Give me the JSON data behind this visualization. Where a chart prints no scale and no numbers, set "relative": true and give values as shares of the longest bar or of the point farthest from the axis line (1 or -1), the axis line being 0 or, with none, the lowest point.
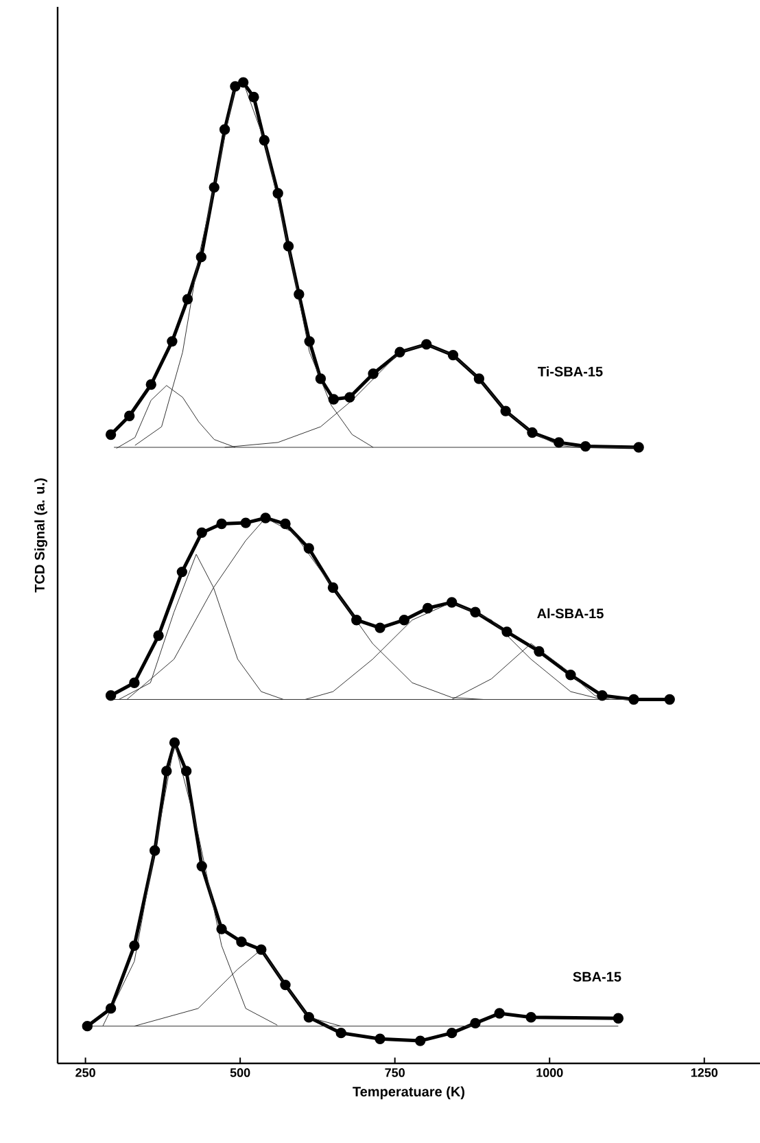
{
  "chart_data": {
    "type": "line",
    "relative": true,
    "xlabel": "Temperatuare (K)",
    "ylabel": "TCD Signal (a. u.)",
    "xlim": [
      205,
      1340
    ],
    "xticks": [
      250,
      500,
      750,
      1000,
      1250
    ],
    "line_style": "solid",
    "annotations": [
      "Ti-SBA-15",
      "Al-SBA-15",
      "SBA-15"
    ],
    "series": [
      {
        "color": "#000000",
        "marker": "circle",
        "x": [
          253,
          291,
          329,
          362,
          381,
          394,
          413,
          438,
          470,
          502,
          534,
          573,
          611,
          663,
          726,
          791,
          842,
          880,
          919,
          970,
          1111
        ],
        "values": [
          0.038,
          0.056,
          0.12,
          0.217,
          0.298,
          0.327,
          0.298,
          0.201,
          0.137,
          0.124,
          0.116,
          0.08,
          0.047,
          0.031,
          0.025,
          0.023,
          0.031,
          0.041,
          0.051,
          0.047,
          0.046
        ]
      },
      {
        "color": "#333333",
        "marker": "none",
        "x": [
          278,
          329,
          362,
          394,
          432,
          470,
          509,
          560
        ],
        "values": [
          0.038,
          0.104,
          0.217,
          0.327,
          0.234,
          0.12,
          0.056,
          0.039
        ]
      },
      {
        "color": "#333333",
        "marker": "none",
        "x": [
          329,
          432,
          496,
          534,
          573,
          611,
          663
        ],
        "values": [
          0.038,
          0.056,
          0.096,
          0.116,
          0.08,
          0.047,
          0.038
        ]
      },
      {
        "color": "#333333",
        "marker": "none",
        "x": [
          253,
          1111
        ],
        "values": [
          0.038,
          0.038
        ]
      },
      {
        "color": "#000000",
        "marker": "circle",
        "x": [
          291,
          329,
          368,
          406,
          438,
          470,
          509,
          541,
          573,
          611,
          650,
          688,
          726,
          765,
          803,
          842,
          880,
          931,
          983,
          1034,
          1085,
          1136,
          1194
        ],
        "values": [
          0.375,
          0.388,
          0.436,
          0.501,
          0.541,
          0.55,
          0.551,
          0.556,
          0.55,
          0.525,
          0.485,
          0.452,
          0.444,
          0.452,
          0.464,
          0.47,
          0.46,
          0.44,
          0.42,
          0.396,
          0.375,
          0.371,
          0.371
        ]
      },
      {
        "color": "#333333",
        "marker": "none",
        "x": [
          304,
          355,
          393,
          429,
          457,
          496,
          534,
          570
        ],
        "values": [
          0.371,
          0.388,
          0.46,
          0.519,
          0.485,
          0.412,
          0.379,
          0.371
        ]
      },
      {
        "color": "#333333",
        "marker": "none",
        "x": [
          317,
          393,
          457,
          509,
          541,
          586,
          650,
          714,
          778,
          842,
          893
        ],
        "values": [
          0.371,
          0.412,
          0.485,
          0.533,
          0.556,
          0.541,
          0.485,
          0.428,
          0.388,
          0.373,
          0.371
        ]
      },
      {
        "color": "#333333",
        "marker": "none",
        "x": [
          605,
          650,
          714,
          778,
          842,
          906,
          970,
          1034,
          1085
        ],
        "values": [
          0.371,
          0.379,
          0.412,
          0.452,
          0.47,
          0.452,
          0.412,
          0.379,
          0.371
        ]
      },
      {
        "color": "#333333",
        "marker": "none",
        "x": [
          842,
          906,
          970,
          1021,
          1073,
          1098
        ],
        "values": [
          0.371,
          0.392,
          0.428,
          0.404,
          0.375,
          0.371
        ]
      },
      {
        "color": "#333333",
        "marker": "none",
        "x": [
          291,
          1136
        ],
        "values": [
          0.371,
          0.371
        ]
      },
      {
        "color": "#000000",
        "marker": "circle",
        "x": [
          291,
          321,
          356,
          390,
          415,
          437,
          458,
          475,
          492,
          505,
          522,
          539,
          561,
          578,
          595,
          612,
          630,
          651,
          677,
          715,
          758,
          801,
          844,
          886,
          929,
          972,
          1015,
          1058,
          1144
        ],
        "values": [
          0.641,
          0.66,
          0.692,
          0.736,
          0.779,
          0.822,
          0.893,
          0.952,
          0.996,
          1.0,
          0.985,
          0.941,
          0.887,
          0.833,
          0.784,
          0.736,
          0.698,
          0.677,
          0.679,
          0.703,
          0.725,
          0.733,
          0.722,
          0.698,
          0.665,
          0.643,
          0.633,
          0.629,
          0.628
        ]
      },
      {
        "color": "#333333",
        "marker": "none",
        "x": [
          300,
          330,
          356,
          381,
          407,
          433,
          458,
          492
        ],
        "values": [
          0.627,
          0.638,
          0.676,
          0.691,
          0.679,
          0.654,
          0.636,
          0.628
        ]
      },
      {
        "color": "#333333",
        "marker": "none",
        "x": [
          330,
          373,
          407,
          433,
          458,
          492,
          505,
          539,
          578,
          612,
          647,
          681,
          715
        ],
        "values": [
          0.63,
          0.649,
          0.725,
          0.822,
          0.893,
          0.996,
          1.0,
          0.941,
          0.833,
          0.725,
          0.671,
          0.641,
          0.628
        ]
      },
      {
        "color": "#333333",
        "marker": "none",
        "x": [
          475,
          561,
          630,
          681,
          758,
          801,
          844,
          886,
          929,
          972,
          1015,
          1058
        ],
        "values": [
          0.628,
          0.633,
          0.649,
          0.676,
          0.725,
          0.733,
          0.722,
          0.698,
          0.665,
          0.643,
          0.63,
          0.627
        ]
      },
      {
        "color": "#333333",
        "marker": "none",
        "x": [
          296,
          1144
        ],
        "values": [
          0.628,
          0.628
        ]
      }
    ]
  }
}
